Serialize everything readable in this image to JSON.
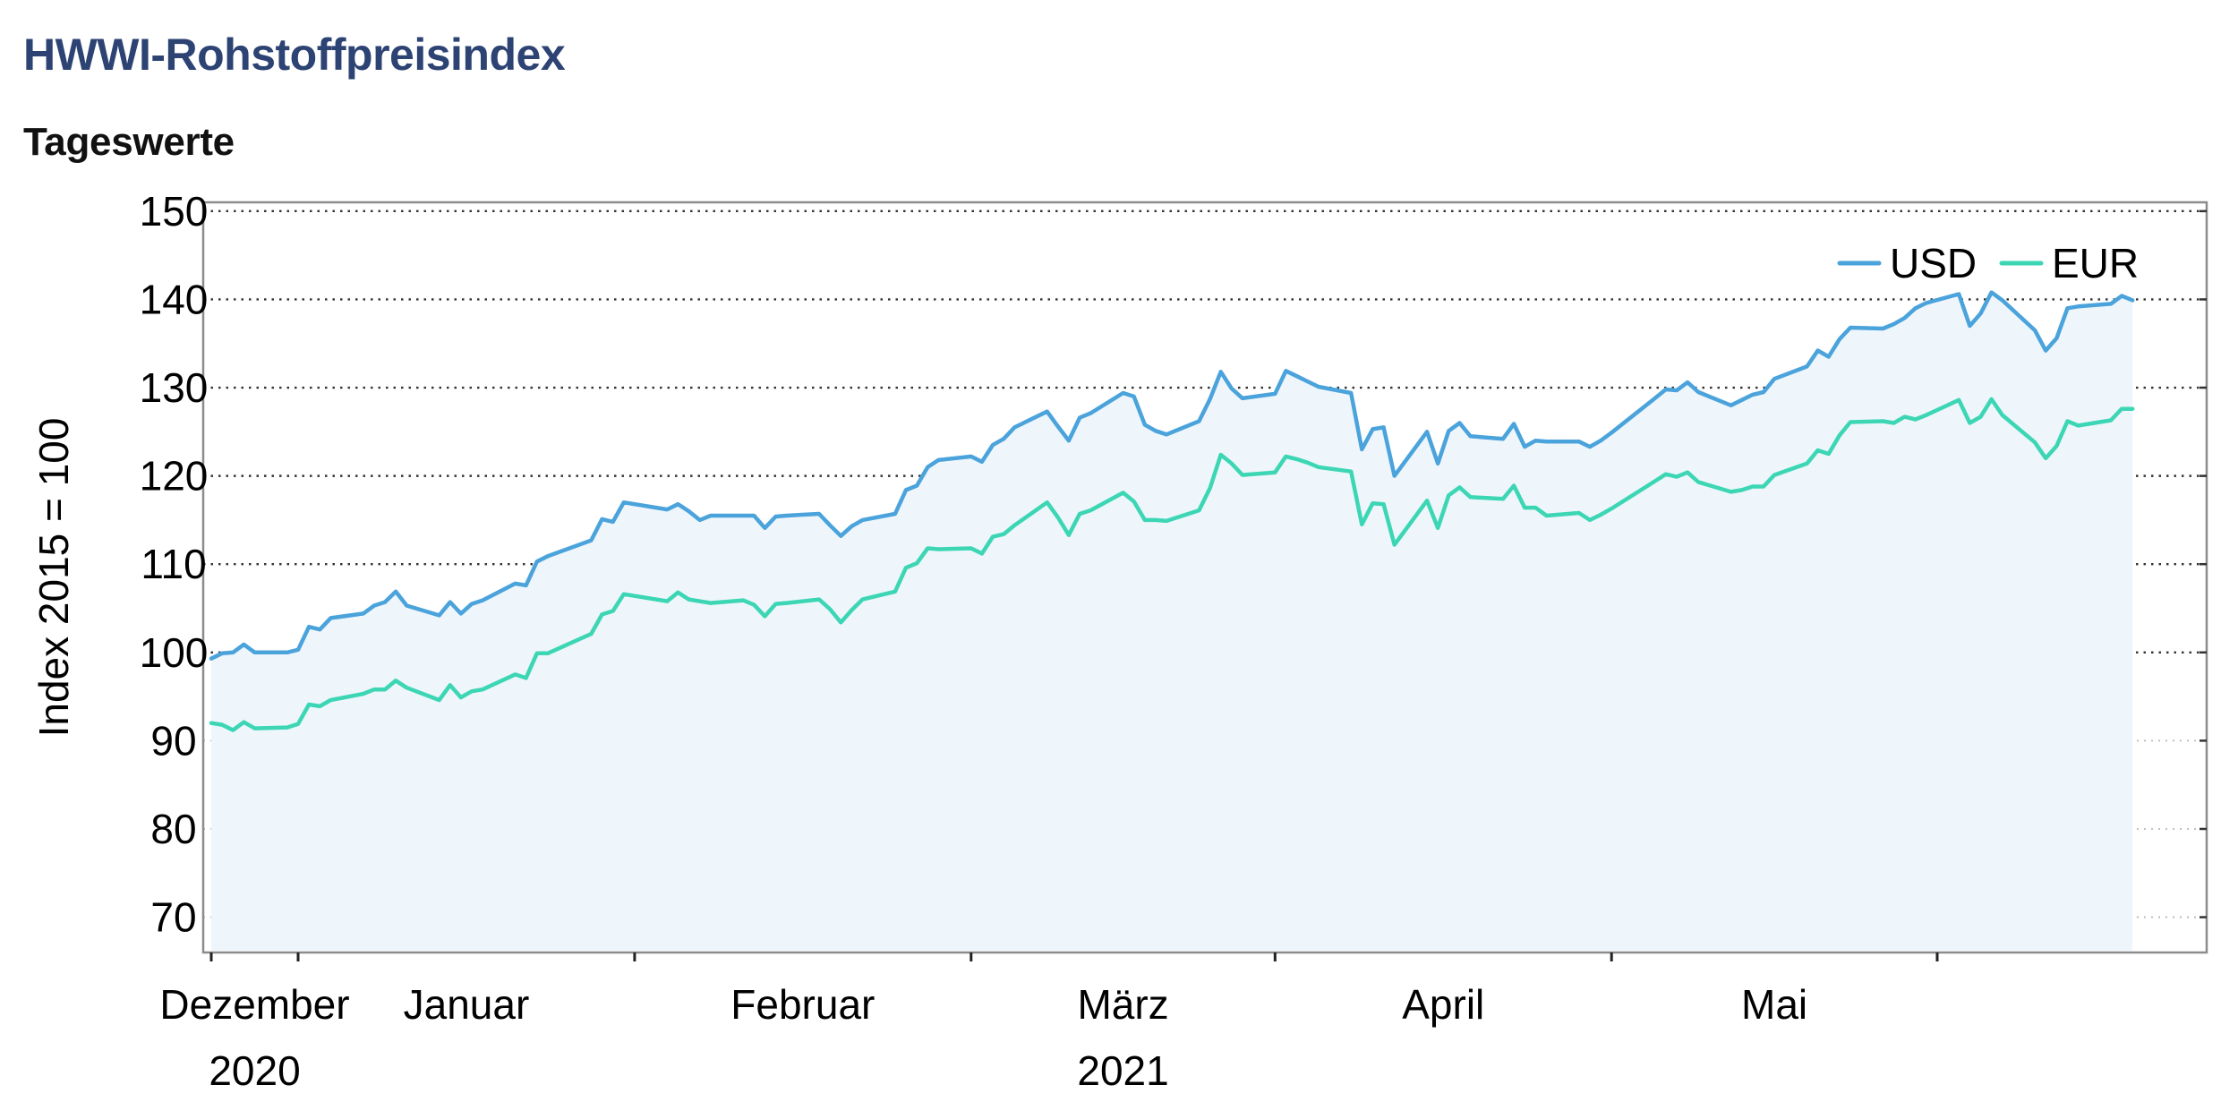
{
  "header": {
    "title": "HWWI-Rohstoffpreisindex",
    "subtitle": "Tageswerte"
  },
  "chart_data": {
    "type": "area",
    "title": "HWWI-Rohstoffpreisindex",
    "subtitle": "Tageswerte",
    "ylabel": "Index 2015 = 100",
    "xlabel": "",
    "ylim": [
      66,
      151
    ],
    "y_ticks": [
      70,
      80,
      90,
      100,
      110,
      120,
      130,
      140,
      150
    ],
    "grid": "horizontal dotted",
    "legend": "top-right",
    "x_range": [
      "2020-11-23",
      "2021-05-25"
    ],
    "x_month_labels": [
      {
        "label": "Dezember",
        "year": "2020"
      },
      {
        "label": "Januar",
        "year": ""
      },
      {
        "label": "Februar",
        "year": ""
      },
      {
        "label": "März",
        "year": "2021"
      },
      {
        "label": "April",
        "year": ""
      },
      {
        "label": "Mai",
        "year": ""
      }
    ],
    "colors": {
      "USD": "#4ba3dc",
      "EUR": "#3dd6b5",
      "fill": "#eef6fb",
      "title": "#2d4373"
    },
    "series": [
      {
        "name": "USD",
        "points": [
          [
            "2020-11-23",
            99.3
          ],
          [
            "2020-11-24",
            99.9
          ],
          [
            "2020-11-25",
            100.0
          ],
          [
            "2020-11-26",
            100.9
          ],
          [
            "2020-11-27",
            100.0
          ],
          [
            "2020-11-30",
            100.0
          ],
          [
            "2020-12-01",
            100.3
          ],
          [
            "2020-12-02",
            102.9
          ],
          [
            "2020-12-03",
            102.6
          ],
          [
            "2020-12-04",
            103.9
          ],
          [
            "2020-12-07",
            104.4
          ],
          [
            "2020-12-08",
            105.3
          ],
          [
            "2020-12-09",
            105.7
          ],
          [
            "2020-12-10",
            106.9
          ],
          [
            "2020-12-11",
            105.3
          ],
          [
            "2020-12-14",
            104.2
          ],
          [
            "2020-12-15",
            105.7
          ],
          [
            "2020-12-16",
            104.4
          ],
          [
            "2020-12-17",
            105.5
          ],
          [
            "2020-12-18",
            105.9
          ],
          [
            "2020-12-21",
            107.8
          ],
          [
            "2020-12-22",
            107.6
          ],
          [
            "2020-12-23",
            110.3
          ],
          [
            "2020-12-24",
            110.9
          ],
          [
            "2020-12-28",
            112.7
          ],
          [
            "2020-12-29",
            115.1
          ],
          [
            "2020-12-30",
            114.8
          ],
          [
            "2020-12-31",
            117.0
          ],
          [
            "2021-01-04",
            116.2
          ],
          [
            "2021-01-05",
            116.8
          ],
          [
            "2021-01-06",
            116.0
          ],
          [
            "2021-01-07",
            115.0
          ],
          [
            "2021-01-08",
            115.5
          ],
          [
            "2021-01-11",
            115.5
          ],
          [
            "2021-01-12",
            115.5
          ],
          [
            "2021-01-13",
            114.1
          ],
          [
            "2021-01-14",
            115.4
          ],
          [
            "2021-01-15",
            115.5
          ],
          [
            "2021-01-18",
            115.7
          ],
          [
            "2021-01-19",
            114.4
          ],
          [
            "2021-01-20",
            113.2
          ],
          [
            "2021-01-21",
            114.3
          ],
          [
            "2021-01-22",
            115.0
          ],
          [
            "2021-01-25",
            115.7
          ],
          [
            "2021-01-26",
            118.4
          ],
          [
            "2021-01-27",
            118.9
          ],
          [
            "2021-01-28",
            121.0
          ],
          [
            "2021-01-29",
            121.8
          ],
          [
            "2021-02-01",
            122.2
          ],
          [
            "2021-02-02",
            121.6
          ],
          [
            "2021-02-03",
            123.5
          ],
          [
            "2021-02-04",
            124.2
          ],
          [
            "2021-02-05",
            125.5
          ],
          [
            "2021-02-08",
            127.3
          ],
          [
            "2021-02-09",
            125.6
          ],
          [
            "2021-02-10",
            124.0
          ],
          [
            "2021-02-11",
            126.6
          ],
          [
            "2021-02-12",
            127.1
          ],
          [
            "2021-02-15",
            129.4
          ],
          [
            "2021-02-16",
            129.0
          ],
          [
            "2021-02-17",
            125.8
          ],
          [
            "2021-02-18",
            125.1
          ],
          [
            "2021-02-19",
            124.7
          ],
          [
            "2021-02-22",
            126.2
          ],
          [
            "2021-02-23",
            128.7
          ],
          [
            "2021-02-24",
            131.8
          ],
          [
            "2021-02-25",
            129.9
          ],
          [
            "2021-02-26",
            128.8
          ],
          [
            "2021-03-01",
            129.3
          ],
          [
            "2021-03-02",
            131.9
          ],
          [
            "2021-03-03",
            131.3
          ],
          [
            "2021-03-04",
            130.7
          ],
          [
            "2021-03-05",
            130.1
          ],
          [
            "2021-03-08",
            129.4
          ],
          [
            "2021-03-09",
            123.0
          ],
          [
            "2021-03-10",
            125.3
          ],
          [
            "2021-03-11",
            125.5
          ],
          [
            "2021-03-12",
            120.0
          ],
          [
            "2021-03-15",
            125.0
          ],
          [
            "2021-03-16",
            121.4
          ],
          [
            "2021-03-17",
            125.1
          ],
          [
            "2021-03-18",
            126.0
          ],
          [
            "2021-03-19",
            124.5
          ],
          [
            "2021-03-22",
            124.2
          ],
          [
            "2021-03-23",
            125.9
          ],
          [
            "2021-03-24",
            123.3
          ],
          [
            "2021-03-25",
            124.0
          ],
          [
            "2021-03-26",
            123.9
          ],
          [
            "2021-03-29",
            123.9
          ],
          [
            "2021-03-30",
            123.3
          ],
          [
            "2021-03-31",
            124.0
          ],
          [
            "2021-04-01",
            124.9
          ],
          [
            "2021-04-05",
            128.8
          ],
          [
            "2021-04-06",
            129.8
          ],
          [
            "2021-04-07",
            129.7
          ],
          [
            "2021-04-08",
            130.6
          ],
          [
            "2021-04-09",
            129.5
          ],
          [
            "2021-04-12",
            128.0
          ],
          [
            "2021-04-13",
            128.6
          ],
          [
            "2021-04-14",
            129.2
          ],
          [
            "2021-04-15",
            129.5
          ],
          [
            "2021-04-16",
            131.0
          ],
          [
            "2021-04-19",
            132.4
          ],
          [
            "2021-04-20",
            134.2
          ],
          [
            "2021-04-21",
            133.5
          ],
          [
            "2021-04-22",
            135.5
          ],
          [
            "2021-04-23",
            136.8
          ],
          [
            "2021-04-26",
            136.7
          ],
          [
            "2021-04-27",
            137.2
          ],
          [
            "2021-04-28",
            137.9
          ],
          [
            "2021-04-29",
            139.0
          ],
          [
            "2021-04-30",
            139.6
          ],
          [
            "2021-05-03",
            140.6
          ],
          [
            "2021-05-04",
            137.0
          ],
          [
            "2021-05-05",
            138.4
          ],
          [
            "2021-05-06",
            140.8
          ],
          [
            "2021-05-07",
            139.9
          ],
          [
            "2021-05-10",
            136.5
          ],
          [
            "2021-05-11",
            134.2
          ],
          [
            "2021-05-12",
            135.6
          ],
          [
            "2021-05-13",
            139.0
          ],
          [
            "2021-05-14",
            139.2
          ],
          [
            "2021-05-17",
            139.5
          ],
          [
            "2021-05-18",
            140.4
          ],
          [
            "2021-05-19",
            139.9
          ]
        ]
      },
      {
        "name": "EUR",
        "points": [
          [
            "2020-11-23",
            92.0
          ],
          [
            "2020-11-24",
            91.8
          ],
          [
            "2020-11-25",
            91.2
          ],
          [
            "2020-11-26",
            92.1
          ],
          [
            "2020-11-27",
            91.4
          ],
          [
            "2020-11-30",
            91.5
          ],
          [
            "2020-12-01",
            91.9
          ],
          [
            "2020-12-02",
            94.1
          ],
          [
            "2020-12-03",
            93.9
          ],
          [
            "2020-12-04",
            94.6
          ],
          [
            "2020-12-07",
            95.3
          ],
          [
            "2020-12-08",
            95.8
          ],
          [
            "2020-12-09",
            95.8
          ],
          [
            "2020-12-10",
            96.8
          ],
          [
            "2020-12-11",
            96.0
          ],
          [
            "2020-12-14",
            94.6
          ],
          [
            "2020-12-15",
            96.3
          ],
          [
            "2020-12-16",
            94.9
          ],
          [
            "2020-12-17",
            95.6
          ],
          [
            "2020-12-18",
            95.8
          ],
          [
            "2020-12-21",
            97.5
          ],
          [
            "2020-12-22",
            97.1
          ],
          [
            "2020-12-23",
            99.9
          ],
          [
            "2020-12-24",
            99.9
          ],
          [
            "2020-12-28",
            102.1
          ],
          [
            "2020-12-29",
            104.3
          ],
          [
            "2020-12-30",
            104.7
          ],
          [
            "2020-12-31",
            106.6
          ],
          [
            "2021-01-04",
            105.8
          ],
          [
            "2021-01-05",
            106.8
          ],
          [
            "2021-01-06",
            106.0
          ],
          [
            "2021-01-07",
            105.8
          ],
          [
            "2021-01-08",
            105.6
          ],
          [
            "2021-01-11",
            105.9
          ],
          [
            "2021-01-12",
            105.4
          ],
          [
            "2021-01-13",
            104.1
          ],
          [
            "2021-01-14",
            105.5
          ],
          [
            "2021-01-15",
            105.6
          ],
          [
            "2021-01-18",
            106.0
          ],
          [
            "2021-01-19",
            104.9
          ],
          [
            "2021-01-20",
            103.4
          ],
          [
            "2021-01-21",
            104.8
          ],
          [
            "2021-01-22",
            106.0
          ],
          [
            "2021-01-25",
            106.9
          ],
          [
            "2021-01-26",
            109.6
          ],
          [
            "2021-01-27",
            110.1
          ],
          [
            "2021-01-28",
            111.8
          ],
          [
            "2021-01-29",
            111.7
          ],
          [
            "2021-02-01",
            111.8
          ],
          [
            "2021-02-02",
            111.2
          ],
          [
            "2021-02-03",
            113.1
          ],
          [
            "2021-02-04",
            113.4
          ],
          [
            "2021-02-05",
            114.4
          ],
          [
            "2021-02-08",
            117.0
          ],
          [
            "2021-02-09",
            115.3
          ],
          [
            "2021-02-10",
            113.3
          ],
          [
            "2021-02-11",
            115.7
          ],
          [
            "2021-02-12",
            116.1
          ],
          [
            "2021-02-15",
            118.1
          ],
          [
            "2021-02-16",
            117.1
          ],
          [
            "2021-02-17",
            115.0
          ],
          [
            "2021-02-18",
            115.0
          ],
          [
            "2021-02-19",
            114.9
          ],
          [
            "2021-02-22",
            116.1
          ],
          [
            "2021-02-23",
            118.6
          ],
          [
            "2021-02-24",
            122.4
          ],
          [
            "2021-02-25",
            121.4
          ],
          [
            "2021-02-26",
            120.1
          ],
          [
            "2021-03-01",
            120.4
          ],
          [
            "2021-03-02",
            122.2
          ],
          [
            "2021-03-03",
            121.9
          ],
          [
            "2021-03-04",
            121.5
          ],
          [
            "2021-03-05",
            121.0
          ],
          [
            "2021-03-08",
            120.5
          ],
          [
            "2021-03-09",
            114.5
          ],
          [
            "2021-03-10",
            116.9
          ],
          [
            "2021-03-11",
            116.8
          ],
          [
            "2021-03-12",
            112.2
          ],
          [
            "2021-03-15",
            117.2
          ],
          [
            "2021-03-16",
            114.1
          ],
          [
            "2021-03-17",
            117.8
          ],
          [
            "2021-03-18",
            118.7
          ],
          [
            "2021-03-19",
            117.6
          ],
          [
            "2021-03-22",
            117.4
          ],
          [
            "2021-03-23",
            118.9
          ],
          [
            "2021-03-24",
            116.4
          ],
          [
            "2021-03-25",
            116.4
          ],
          [
            "2021-03-26",
            115.5
          ],
          [
            "2021-03-29",
            115.8
          ],
          [
            "2021-03-30",
            115.0
          ],
          [
            "2021-03-31",
            115.6
          ],
          [
            "2021-04-01",
            116.3
          ],
          [
            "2021-04-05",
            119.4
          ],
          [
            "2021-04-06",
            120.2
          ],
          [
            "2021-04-07",
            119.9
          ],
          [
            "2021-04-08",
            120.4
          ],
          [
            "2021-04-09",
            119.3
          ],
          [
            "2021-04-12",
            118.2
          ],
          [
            "2021-04-13",
            118.4
          ],
          [
            "2021-04-14",
            118.8
          ],
          [
            "2021-04-15",
            118.8
          ],
          [
            "2021-04-16",
            120.1
          ],
          [
            "2021-04-19",
            121.4
          ],
          [
            "2021-04-20",
            122.9
          ],
          [
            "2021-04-21",
            122.5
          ],
          [
            "2021-04-22",
            124.6
          ],
          [
            "2021-04-23",
            126.1
          ],
          [
            "2021-04-26",
            126.2
          ],
          [
            "2021-04-27",
            126.0
          ],
          [
            "2021-04-28",
            126.7
          ],
          [
            "2021-04-29",
            126.4
          ],
          [
            "2021-04-30",
            126.9
          ],
          [
            "2021-05-03",
            128.6
          ],
          [
            "2021-05-04",
            126.0
          ],
          [
            "2021-05-05",
            126.7
          ],
          [
            "2021-05-06",
            128.7
          ],
          [
            "2021-05-07",
            126.9
          ],
          [
            "2021-05-10",
            123.8
          ],
          [
            "2021-05-11",
            122.0
          ],
          [
            "2021-05-12",
            123.4
          ],
          [
            "2021-05-13",
            126.2
          ],
          [
            "2021-05-14",
            125.7
          ],
          [
            "2021-05-17",
            126.3
          ],
          [
            "2021-05-18",
            127.6
          ],
          [
            "2021-05-19",
            127.6
          ]
        ]
      }
    ]
  }
}
